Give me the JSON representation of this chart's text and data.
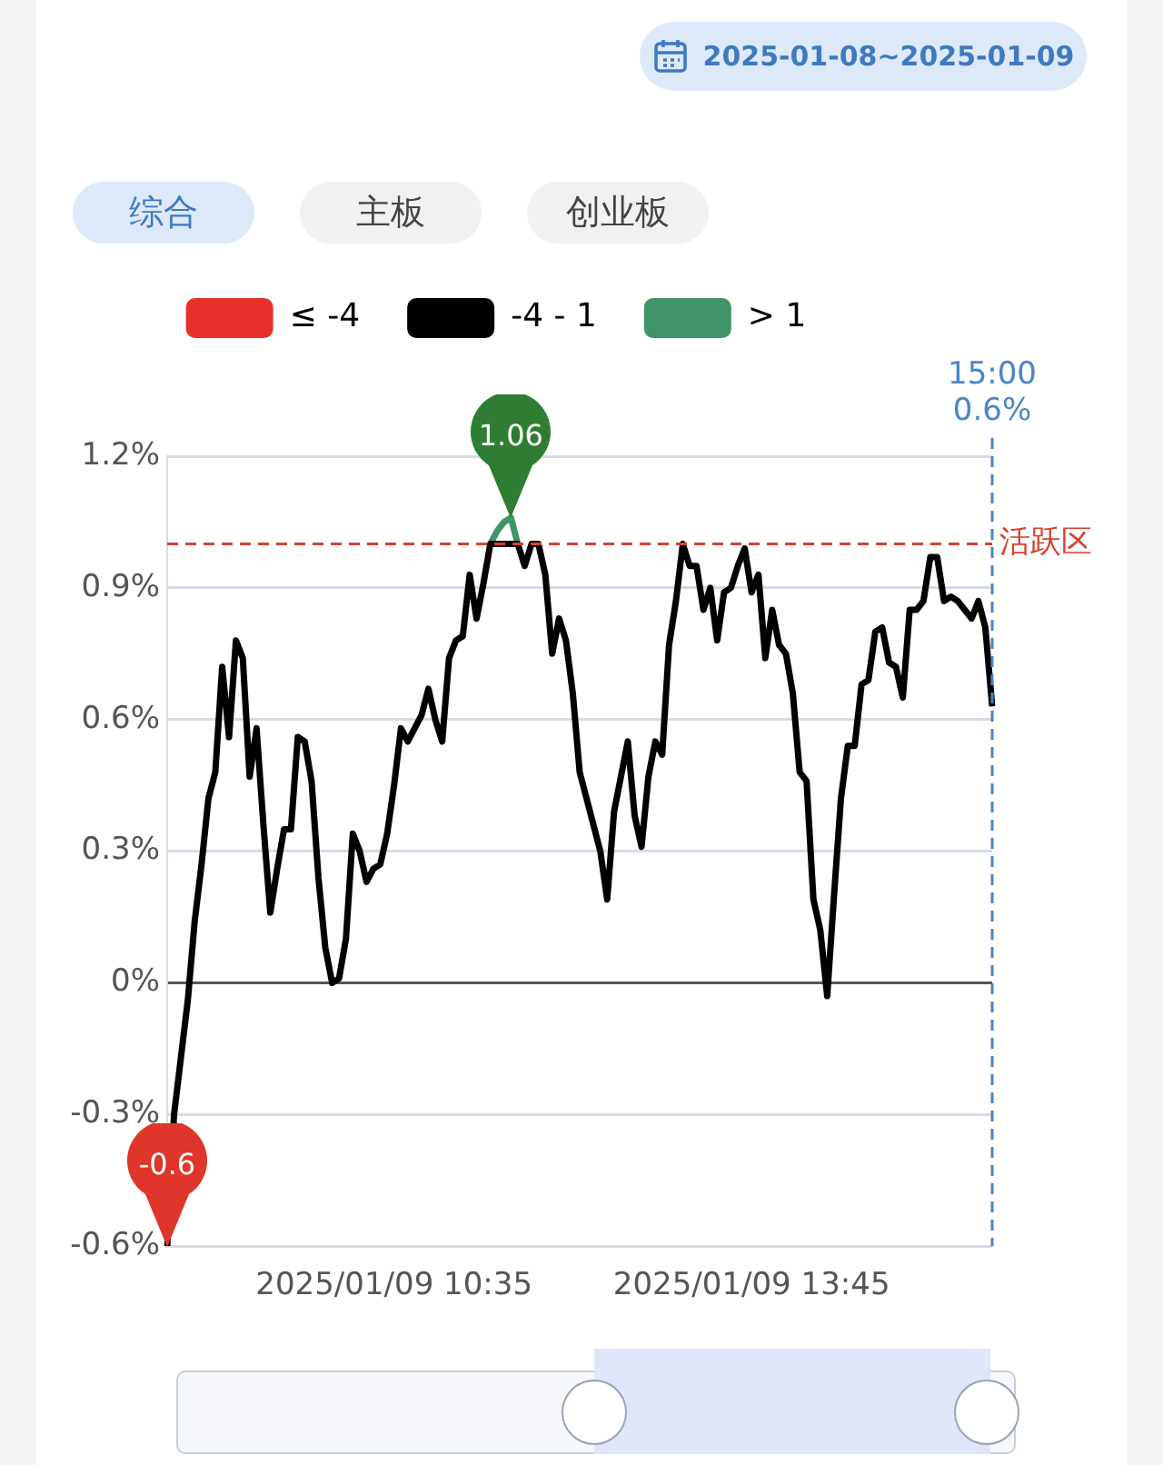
{
  "chart_data": {
    "type": "line",
    "subtitle": "2025-01-08~2025-01-09",
    "annotations": [
      "综合",
      "主板",
      "创业板",
      {
        "text": "1.06",
        "y": 1.06
      },
      {
        "text": "-0.6",
        "y": -0.6
      }
    ],
    "categories": [
      null,
      null,
      null,
      null,
      null,
      null,
      null,
      null,
      null,
      null,
      null,
      null,
      null,
      null,
      null,
      null,
      null,
      null,
      null,
      null,
      null,
      null,
      null,
      null,
      null,
      null,
      null,
      null,
      null,
      null,
      null,
      null,
      null,
      "2025/01/09 10:35",
      null,
      null,
      null,
      null,
      null,
      null,
      null,
      null,
      null,
      null,
      null,
      null,
      null,
      null,
      null,
      null,
      null,
      null,
      null,
      null,
      null,
      null,
      null,
      null,
      null,
      null,
      null,
      null,
      null,
      null,
      null,
      null,
      null,
      null,
      null,
      null,
      null,
      null,
      null,
      null,
      null,
      null,
      null,
      null,
      null,
      null,
      null,
      null,
      null,
      null,
      null,
      "2025/01/09 13:45",
      null,
      null,
      null,
      null,
      null,
      null,
      null,
      null,
      null,
      null,
      null,
      null,
      null,
      null,
      null,
      null,
      null,
      null,
      null,
      null,
      null,
      null,
      null,
      null,
      null,
      null,
      null,
      null,
      null,
      null,
      null,
      null,
      null,
      null,
      null
    ],
    "series": [
      {
        "name": "≤ -4",
        "color": "#e8302a",
        "values": [
          null,
          null,
          null,
          null,
          null,
          null,
          null,
          null,
          null,
          null,
          null,
          null,
          null,
          null,
          null,
          null,
          null,
          null,
          null,
          null,
          null,
          null,
          null,
          null,
          null,
          null,
          null,
          null,
          null,
          null,
          null,
          null,
          null,
          null,
          null,
          null,
          null,
          null,
          null,
          null,
          null,
          null,
          null,
          null,
          null,
          null,
          null,
          null,
          null,
          null,
          null,
          null,
          null,
          null,
          null,
          null,
          null,
          null,
          null,
          null,
          null,
          null,
          null,
          null,
          null,
          null,
          null,
          null,
          null,
          null,
          null,
          null,
          null,
          null,
          null,
          null,
          null,
          null,
          null,
          null,
          null,
          null,
          null,
          null,
          null,
          null,
          null,
          null,
          null,
          null,
          null,
          null,
          null,
          null,
          null,
          null,
          null,
          null,
          null,
          null,
          null,
          null,
          null,
          null,
          null,
          null,
          null,
          null,
          null,
          null,
          null,
          null,
          null,
          null,
          null,
          null,
          null,
          null,
          null,
          null,
          null
        ]
      },
      {
        "name": "-4 - 1",
        "color": "#000000",
        "values": [
          -0.6,
          -0.3,
          -0.17,
          -0.04,
          0.14,
          0.27,
          0.42,
          0.48,
          0.72,
          0.56,
          0.78,
          0.74,
          0.47,
          0.58,
          0.36,
          0.16,
          0.26,
          0.35,
          0.35,
          0.56,
          0.55,
          0.46,
          0.24,
          0.08,
          0.0,
          0.01,
          0.1,
          0.34,
          0.3,
          0.23,
          0.26,
          0.27,
          0.34,
          0.45,
          0.58,
          0.55,
          0.58,
          0.61,
          0.67,
          0.6,
          0.55,
          0.74,
          0.78,
          0.79,
          0.93,
          0.83,
          0.91,
          1.0,
          1.0,
          1.0,
          1.0,
          1.0,
          0.95,
          1.0,
          1.0,
          0.93,
          0.75,
          0.83,
          0.78,
          0.66,
          0.48,
          0.42,
          0.36,
          0.3,
          0.19,
          0.39,
          0.47,
          0.55,
          0.38,
          0.31,
          0.47,
          0.55,
          0.52,
          0.77,
          0.87,
          1.0,
          0.95,
          0.95,
          0.85,
          0.9,
          0.78,
          0.89,
          0.9,
          0.95,
          0.99,
          0.89,
          0.93,
          0.74,
          0.85,
          0.77,
          0.75,
          0.66,
          0.48,
          0.46,
          0.19,
          0.12,
          -0.03,
          0.2,
          0.42,
          0.54,
          0.54,
          0.68,
          0.69,
          0.8,
          0.81,
          0.73,
          0.72,
          0.65,
          0.85,
          0.85,
          0.87,
          0.97,
          0.97,
          0.87,
          0.88,
          0.87,
          0.85,
          0.83,
          0.87,
          0.81,
          0.63
        ]
      },
      {
        "name": "> 1",
        "color": "#3f9468",
        "values": [
          null,
          null,
          null,
          null,
          null,
          null,
          null,
          null,
          null,
          null,
          null,
          null,
          null,
          null,
          null,
          null,
          null,
          null,
          null,
          null,
          null,
          null,
          null,
          null,
          null,
          null,
          null,
          null,
          null,
          null,
          null,
          null,
          null,
          null,
          null,
          null,
          null,
          null,
          null,
          null,
          null,
          null,
          null,
          null,
          null,
          null,
          null,
          1.0,
          1.03,
          1.05,
          1.06,
          1.0,
          null,
          null,
          null,
          null,
          null,
          null,
          null,
          null,
          null,
          null,
          null,
          null,
          null,
          null,
          null,
          null,
          null,
          null,
          null,
          null,
          null,
          null,
          null,
          null,
          null,
          null,
          null,
          null,
          null,
          null,
          null,
          null,
          null,
          null,
          null,
          null,
          null,
          null,
          null,
          null,
          null,
          null,
          null,
          null,
          null,
          null,
          null,
          null,
          null,
          null,
          null,
          null,
          null,
          null,
          null,
          null,
          null,
          null,
          null,
          null,
          null,
          null,
          null,
          null,
          null,
          null,
          null,
          null,
          null
        ]
      }
    ],
    "ylim": [
      -0.6,
      1.2
    ],
    "yticks": [
      {
        "value": -0.6,
        "label": "-0.6%"
      },
      {
        "value": -0.3,
        "label": "-0.3%"
      },
      {
        "value": 0,
        "label": "0%"
      },
      {
        "value": 0.3,
        "label": "0.3%"
      },
      {
        "value": 0.6,
        "label": "0.6%"
      },
      {
        "value": 0.9,
        "label": "0.9%"
      },
      {
        "value": 1.2,
        "label": "1.2%"
      }
    ],
    "ref_lines": [
      {
        "axis": "y",
        "value": 1.0,
        "label": "活跃区",
        "color": "#d9412f",
        "line_style": "dashed"
      },
      {
        "axis": "x",
        "value": "15:00",
        "label": "0.6%",
        "color": "#4a86c8",
        "line_style": "dashed"
      }
    ],
    "grid": "y",
    "legend": "top",
    "marker": "none",
    "line_style": "solid"
  }
}
